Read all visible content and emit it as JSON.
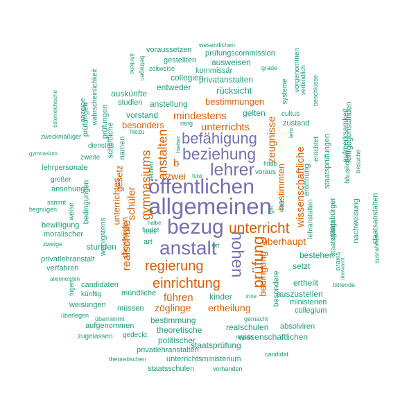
{
  "colors": {
    "purple": "#7570b3",
    "orange": "#d95f02",
    "green": "#1b9e77"
  },
  "words": [
    {
      "text": "allgemeinen",
      "color": "purple"
    },
    {
      "text": "öffentlichen",
      "color": "purple"
    },
    {
      "text": "bezug",
      "color": "purple"
    },
    {
      "text": "anstalt",
      "color": "purple"
    },
    {
      "text": "lehrer",
      "color": "purple"
    },
    {
      "text": "beziehung",
      "color": "purple"
    },
    {
      "text": "befähigung",
      "color": "purple"
    },
    {
      "text": "hohen",
      "color": "purple"
    },
    {
      "text": "unterricht",
      "color": "orange"
    },
    {
      "text": "regierung",
      "color": "orange"
    },
    {
      "text": "einrichtung",
      "color": "orange"
    },
    {
      "text": "prüfung",
      "color": "orange"
    },
    {
      "text": "gymnasiums",
      "color": "orange"
    },
    {
      "text": "anstalten",
      "color": "orange"
    },
    {
      "text": "realschule",
      "color": "orange"
    },
    {
      "text": "unterrichts",
      "color": "orange"
    },
    {
      "text": "mindestens",
      "color": "orange"
    },
    {
      "text": "zeugnisse",
      "color": "orange"
    },
    {
      "text": "schüler",
      "color": "orange"
    },
    {
      "text": "bestimmungen",
      "color": "orange"
    },
    {
      "text": "besonders",
      "color": "orange"
    },
    {
      "text": "wissenschaftliche",
      "color": "orange"
    },
    {
      "text": "bestimmten",
      "color": "orange"
    },
    {
      "text": "überhaupt",
      "color": "orange"
    },
    {
      "text": "bedingung",
      "color": "orange"
    },
    {
      "text": "führen",
      "color": "orange"
    },
    {
      "text": "zöglinge",
      "color": "orange"
    },
    {
      "text": "ertheilung",
      "color": "orange"
    },
    {
      "text": "b",
      "color": "orange"
    },
    {
      "text": "zwei",
      "color": "orange"
    },
    {
      "text": "gesetz",
      "color": "orange"
    },
    {
      "text": "unterrichtes",
      "color": "orange"
    },
    {
      "text": "diejenigen",
      "color": "orange"
    },
    {
      "text": "voraussetzen",
      "color": "green"
    },
    {
      "text": "wesentlichen",
      "color": "green"
    },
    {
      "text": "prüfungscommission",
      "color": "green"
    },
    {
      "text": "gestellten",
      "color": "green"
    },
    {
      "text": "ausweisen",
      "color": "green"
    },
    {
      "text": "grade",
      "color": "green"
    },
    {
      "text": "zeitweise",
      "color": "green"
    },
    {
      "text": "kommissär",
      "color": "green"
    },
    {
      "text": "collegien",
      "color": "green"
    },
    {
      "text": "privatanstalten",
      "color": "green"
    },
    {
      "text": "entweder",
      "color": "green"
    },
    {
      "text": "auskünfte",
      "color": "green"
    },
    {
      "text": "rücksicht",
      "color": "green"
    },
    {
      "text": "studien",
      "color": "green"
    },
    {
      "text": "anstellung",
      "color": "green"
    },
    {
      "text": "vorstand",
      "color": "green"
    },
    {
      "text": "gelten",
      "color": "green"
    },
    {
      "text": "rang",
      "color": "green"
    },
    {
      "text": "cultus",
      "color": "green"
    },
    {
      "text": "zustand",
      "color": "green"
    },
    {
      "text": "hiezu",
      "color": "green"
    },
    {
      "text": "namen",
      "color": "green"
    },
    {
      "text": "zweite",
      "color": "green"
    },
    {
      "text": "dienstes",
      "color": "green"
    },
    {
      "text": "zweckmäßiger",
      "color": "green"
    },
    {
      "text": "gymnasium",
      "color": "green"
    },
    {
      "text": "lehrpersonale",
      "color": "green"
    },
    {
      "text": "großer",
      "color": "green"
    },
    {
      "text": "ansehung",
      "color": "green"
    },
    {
      "text": "sammt",
      "color": "green"
    },
    {
      "text": "begnügen",
      "color": "green"
    },
    {
      "text": "bewilligung",
      "color": "green"
    },
    {
      "text": "moralischer",
      "color": "green"
    },
    {
      "text": "zweige",
      "color": "green"
    },
    {
      "text": "privatlehranstalt",
      "color": "green"
    },
    {
      "text": "verfahren",
      "color": "green"
    },
    {
      "text": "allermeisten",
      "color": "green"
    },
    {
      "text": "candidaten",
      "color": "green"
    },
    {
      "text": "künftig",
      "color": "green"
    },
    {
      "text": "weisungen",
      "color": "green"
    },
    {
      "text": "überlegen",
      "color": "green"
    },
    {
      "text": "aufgenommen",
      "color": "green"
    },
    {
      "text": "zugelassen",
      "color": "green"
    },
    {
      "text": "gedeckt",
      "color": "green"
    },
    {
      "text": "theoretischen",
      "color": "green"
    },
    {
      "text": "privatlehranstalten",
      "color": "green"
    },
    {
      "text": "unterrichtsministerium",
      "color": "green"
    },
    {
      "text": "staatsschulen",
      "color": "green"
    },
    {
      "text": "vorhanden",
      "color": "green"
    },
    {
      "text": "candidat",
      "color": "green"
    },
    {
      "text": "regeln",
      "color": "green"
    },
    {
      "text": "gemacht",
      "color": "green"
    },
    {
      "text": "wissenschaftlichen",
      "color": "green"
    },
    {
      "text": "politischer",
      "color": "green"
    },
    {
      "text": "staatsprüfung",
      "color": "green"
    },
    {
      "text": "realschulen",
      "color": "green"
    },
    {
      "text": "theoretische",
      "color": "green"
    },
    {
      "text": "bestimmung",
      "color": "green"
    },
    {
      "text": "müssen",
      "color": "green"
    },
    {
      "text": "übernimmt",
      "color": "green"
    },
    {
      "text": "mündliche",
      "color": "green"
    },
    {
      "text": "kinder",
      "color": "green"
    },
    {
      "text": "inne",
      "color": "green"
    },
    {
      "text": "absolviren",
      "color": "green"
    },
    {
      "text": "collegium",
      "color": "green"
    },
    {
      "text": "ministerien",
      "color": "green"
    },
    {
      "text": "auszustellen",
      "color": "green"
    },
    {
      "text": "ertheilt",
      "color": "green"
    },
    {
      "text": "bittende",
      "color": "green"
    },
    {
      "text": "besondere",
      "color": "green"
    },
    {
      "text": "setzt",
      "color": "green"
    },
    {
      "text": "bestehen",
      "color": "green"
    },
    {
      "text": "ort",
      "color": "green"
    },
    {
      "text": "art",
      "color": "green"
    },
    {
      "text": "halbe",
      "color": "green"
    },
    {
      "text": "reihe",
      "color": "green"
    },
    {
      "text": "findet",
      "color": "green"
    },
    {
      "text": "stunden",
      "color": "green"
    },
    {
      "text": "letzten",
      "color": "green"
    },
    {
      "text": "fühlt",
      "color": "green"
    },
    {
      "text": "voraus",
      "color": "green"
    },
    {
      "text": "finde",
      "color": "green"
    },
    {
      "text": "gilt",
      "color": "green"
    },
    {
      "text": "hieher",
      "color": "green"
    },
    {
      "text": "ähnliche",
      "color": "green"
    },
    {
      "text": "betragen",
      "color": "green"
    },
    {
      "text": "wahrscheinlichkeit",
      "color": "green"
    },
    {
      "text": "österreichische",
      "color": "green"
    },
    {
      "text": "anzeige",
      "color": "green"
    },
    {
      "text": "prüfungen",
      "color": "green"
    },
    {
      "text": "prüfungen",
      "color": "green"
    },
    {
      "text": "schriftliche",
      "color": "green"
    },
    {
      "text": "weise",
      "color": "green"
    },
    {
      "text": "bedingungen",
      "color": "green"
    },
    {
      "text": "wenigstens",
      "color": "green"
    },
    {
      "text": "fügen",
      "color": "green"
    },
    {
      "text": "systeme",
      "color": "green"
    },
    {
      "text": "lehr",
      "color": "green"
    },
    {
      "text": "vorgenommen",
      "color": "green"
    },
    {
      "text": "verbindlich",
      "color": "green"
    },
    {
      "text": "beschlüsse",
      "color": "green"
    },
    {
      "text": "errichtet",
      "color": "green"
    },
    {
      "text": "staatsprüfungen",
      "color": "green"
    },
    {
      "text": "eröffnung",
      "color": "green"
    },
    {
      "text": "lehranstalten",
      "color": "green"
    },
    {
      "text": "staatsbürger",
      "color": "green"
    },
    {
      "text": "aufmerksamkeit",
      "color": "green"
    },
    {
      "text": "lehrgegenständen",
      "color": "green"
    },
    {
      "text": "häuslichen",
      "color": "green"
    },
    {
      "text": "besuche",
      "color": "green"
    },
    {
      "text": "nachweisung",
      "color": "green"
    },
    {
      "text": "staatsgiltige",
      "color": "green"
    },
    {
      "text": "praxis",
      "color": "green"
    },
    {
      "text": "überwacht",
      "color": "green"
    },
    {
      "text": "staatsanstalten",
      "color": "green"
    },
    {
      "text": "ausnahmen",
      "color": "green"
    },
    {
      "text": "leiten",
      "color": "green"
    }
  ]
}
